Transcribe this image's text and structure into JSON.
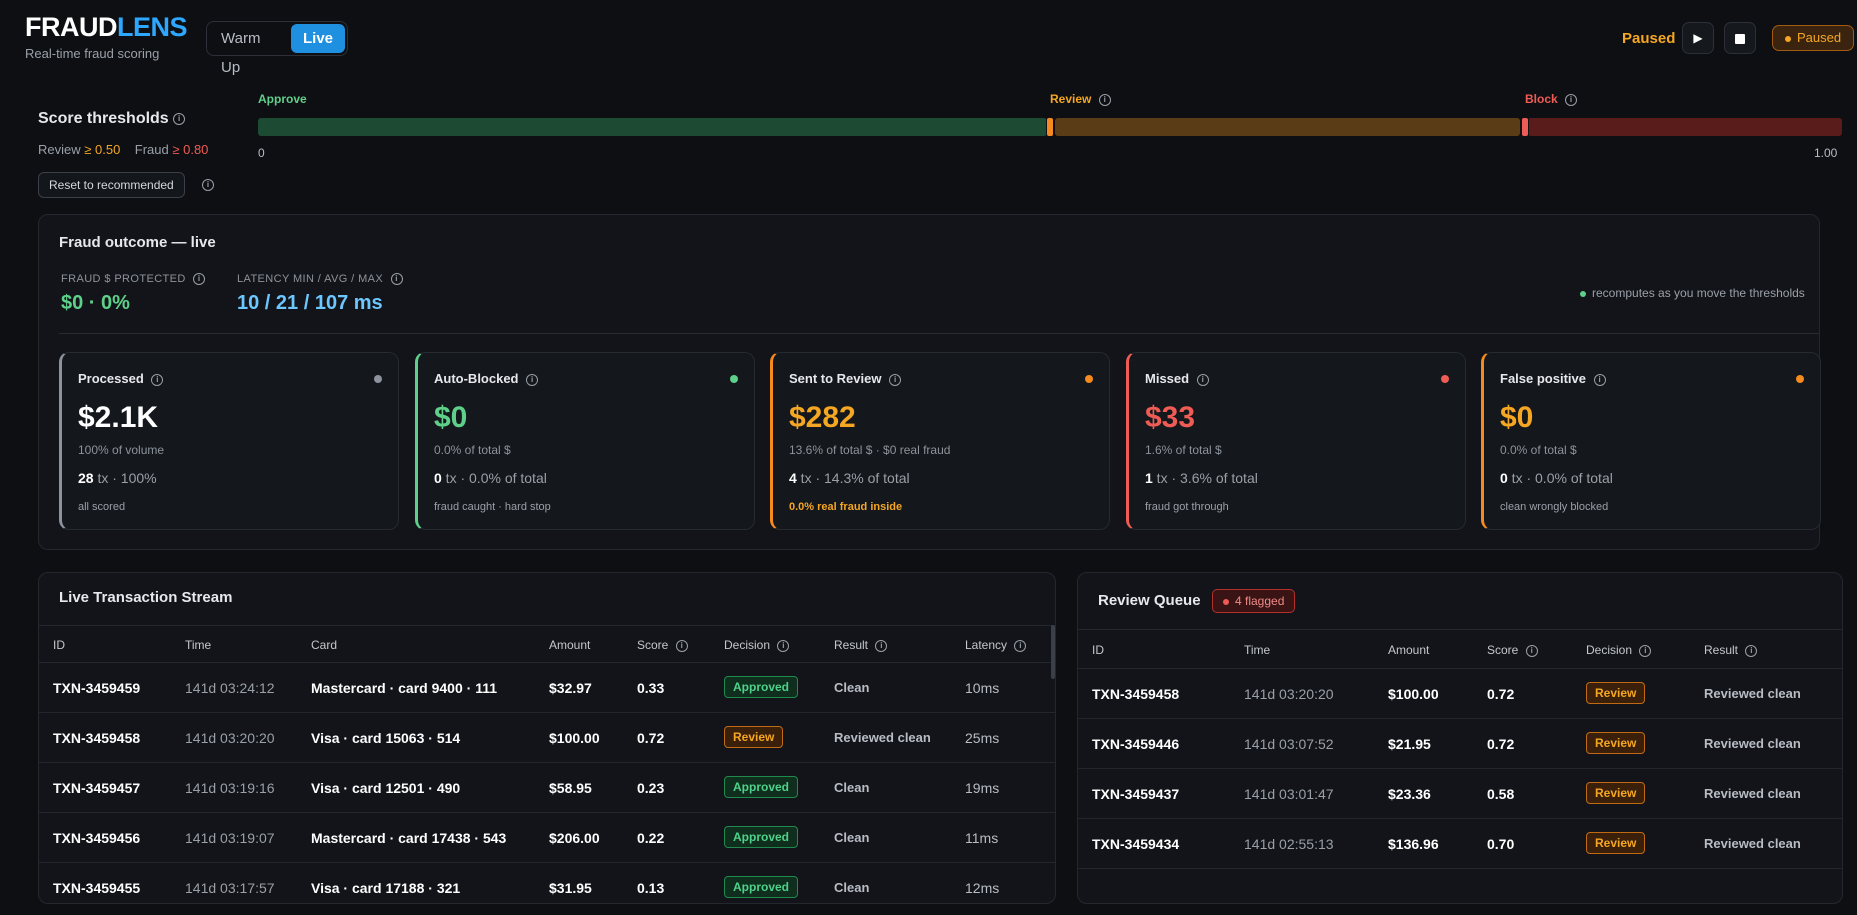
{
  "header": {
    "logo_a": "FRAUD",
    "logo_b": "LENS",
    "tagline": "Real-time fraud scoring",
    "modes": [
      "Warm Up",
      "Live"
    ],
    "active_mode": "Live",
    "state_text": "Paused",
    "play_icon": "▶",
    "status_badge": "Paused"
  },
  "thresholds": {
    "title": "Score thresholds",
    "review_label": "Review",
    "review_value": "≥ 0.50",
    "fraud_label": "Fraud",
    "fraud_value": "≥ 0.80",
    "reset_label": "Reset to recommended",
    "seg_approve": "Approve",
    "seg_review": "Review",
    "seg_block": "Block",
    "axis_min": "0",
    "axis_max": "1.00",
    "review_threshold": 0.5,
    "fraud_threshold": 0.8,
    "colors": {
      "approve": "#1d4a33",
      "review": "#5a3d17",
      "block": "#5a1c1a",
      "approve_text": "#5fd08a",
      "review_text": "#f5a623",
      "block_text": "#ef5b55"
    }
  },
  "outcome": {
    "title": "Fraud outcome — live",
    "protected_label": "FRAUD $ PROTECTED",
    "protected_value": "$0 · 0%",
    "latency_label": "LATENCY MIN / AVG / MAX",
    "latency_value": "10 / 21 / 107 ms",
    "recompute_note": "recomputes as you move the thresholds",
    "cards": [
      {
        "title": "Processed",
        "value": "$2.1K",
        "sub": "100% of volume",
        "tx_count": "28",
        "tx_rest": " tx · 100%",
        "foot": "all scored",
        "color": "#ffffff",
        "accent": "#8d939c",
        "foot_color": "#9aa0a8"
      },
      {
        "title": "Auto-Blocked",
        "value": "$0",
        "sub": "0.0% of total $",
        "tx_count": "0",
        "tx_rest": " tx · 0.0% of total",
        "foot": "fraud caught · hard stop",
        "color": "#5fd08a",
        "accent": "#5fd08a",
        "foot_color": "#9aa0a8"
      },
      {
        "title": "Sent to Review",
        "value": "$282",
        "sub": "13.6% of total $ · $0 real fraud",
        "tx_count": "4",
        "tx_rest": " tx · 14.3% of total",
        "foot": "0.0% real fraud inside",
        "color": "#f5a623",
        "accent": "#f58a1f",
        "foot_color": "#f5a623"
      },
      {
        "title": "Missed",
        "value": "$33",
        "sub": "1.6% of total $",
        "tx_count": "1",
        "tx_rest": " tx · 3.6% of total",
        "foot": "fraud got through",
        "color": "#ef5b55",
        "accent": "#ef5b55",
        "foot_color": "#9aa0a8"
      },
      {
        "title": "False positive",
        "value": "$0",
        "sub": "0.0% of total $",
        "tx_count": "0",
        "tx_rest": " tx · 0.0% of total",
        "foot": "clean wrongly blocked",
        "color": "#f5a623",
        "accent": "#f58a1f",
        "foot_color": "#9aa0a8"
      }
    ]
  },
  "stream": {
    "title": "Live Transaction Stream",
    "columns": [
      "ID",
      "Time",
      "Card",
      "Amount",
      "Score",
      "Decision",
      "Result",
      "Latency"
    ],
    "rows": [
      {
        "id": "TXN-3459459",
        "time": "141d 03:24:12",
        "card": "Mastercard · card 9400 · 111",
        "amount": "$32.97",
        "score": "0.33",
        "decision": "Approved",
        "result": "Clean",
        "latency": "10ms"
      },
      {
        "id": "TXN-3459458",
        "time": "141d 03:20:20",
        "card": "Visa · card 15063 · 514",
        "amount": "$100.00",
        "score": "0.72",
        "decision": "Review",
        "result": "Reviewed clean",
        "latency": "25ms"
      },
      {
        "id": "TXN-3459457",
        "time": "141d 03:19:16",
        "card": "Visa · card 12501 · 490",
        "amount": "$58.95",
        "score": "0.23",
        "decision": "Approved",
        "result": "Clean",
        "latency": "19ms"
      },
      {
        "id": "TXN-3459456",
        "time": "141d 03:19:07",
        "card": "Mastercard · card 17438 · 543",
        "amount": "$206.00",
        "score": "0.22",
        "decision": "Approved",
        "result": "Clean",
        "latency": "11ms"
      },
      {
        "id": "TXN-3459455",
        "time": "141d 03:17:57",
        "card": "Visa · card 17188 · 321",
        "amount": "$31.95",
        "score": "0.13",
        "decision": "Approved",
        "result": "Clean",
        "latency": "12ms"
      }
    ]
  },
  "queue": {
    "title": "Review Queue",
    "flag_badge": "4 flagged",
    "columns": [
      "ID",
      "Time",
      "Amount",
      "Score",
      "Decision",
      "Result"
    ],
    "rows": [
      {
        "id": "TXN-3459458",
        "time": "141d 03:20:20",
        "amount": "$100.00",
        "score": "0.72",
        "decision": "Review",
        "result": "Reviewed clean"
      },
      {
        "id": "TXN-3459446",
        "time": "141d 03:07:52",
        "amount": "$21.95",
        "score": "0.72",
        "decision": "Review",
        "result": "Reviewed clean"
      },
      {
        "id": "TXN-3459437",
        "time": "141d 03:01:47",
        "amount": "$23.36",
        "score": "0.58",
        "decision": "Review",
        "result": "Reviewed clean"
      },
      {
        "id": "TXN-3459434",
        "time": "141d 02:55:13",
        "amount": "$136.96",
        "score": "0.70",
        "decision": "Review",
        "result": "Reviewed clean"
      }
    ]
  }
}
